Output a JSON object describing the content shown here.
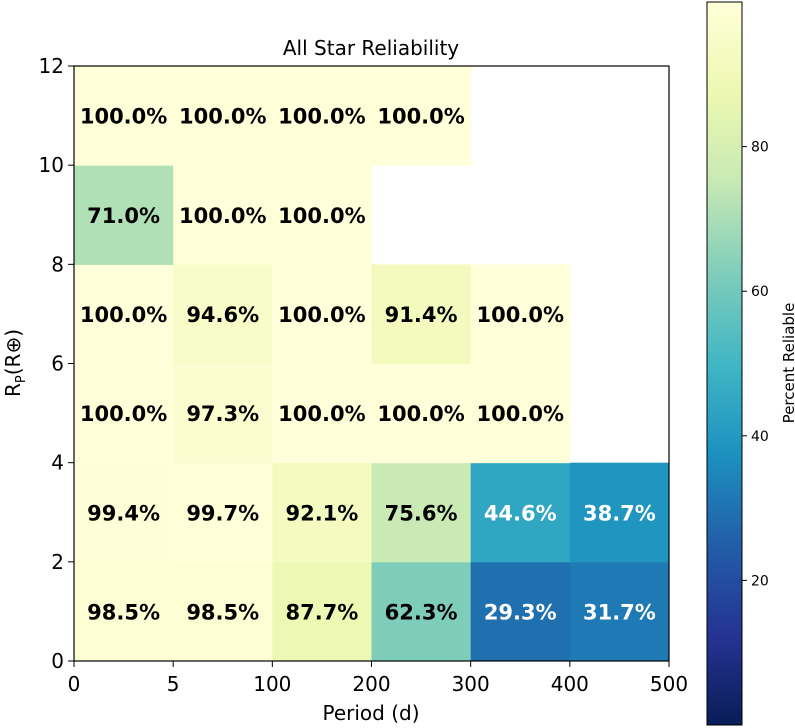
{
  "chart_data": {
    "type": "heatmap",
    "title": "All Star Reliability",
    "xlabel": "Period (d)",
    "ylabel_main": "R",
    "ylabel_sub": "P",
    "ylabel_rest": "(R⊕)",
    "x_tick_labels": [
      "0",
      "5",
      "100",
      "200",
      "300",
      "400",
      "500"
    ],
    "y_tick_labels": [
      "0",
      "2",
      "4",
      "6",
      "8",
      "10",
      "12"
    ],
    "x_bins": [
      "0-5",
      "5-100",
      "100-200",
      "200-300",
      "300-400",
      "400-500"
    ],
    "y_bins": [
      "0-2",
      "2-4",
      "4-6",
      "6-8",
      "8-10",
      "10-12"
    ],
    "cells": [
      [
        98.5,
        98.5,
        87.7,
        62.3,
        29.3,
        31.7
      ],
      [
        99.4,
        99.7,
        92.1,
        75.6,
        44.6,
        38.7
      ],
      [
        100.0,
        97.3,
        100.0,
        100.0,
        100.0,
        null
      ],
      [
        100.0,
        94.6,
        100.0,
        91.4,
        100.0,
        null
      ],
      [
        71.0,
        100.0,
        100.0,
        null,
        null,
        null
      ],
      [
        100.0,
        100.0,
        100.0,
        100.0,
        null,
        null
      ]
    ],
    "value_suffix": "%",
    "colorbar": {
      "label": "Percent Reliable",
      "colormap": "YlGnBu_r",
      "range": [
        0,
        100
      ],
      "ticks": [
        "20",
        "40",
        "60",
        "80"
      ]
    }
  }
}
